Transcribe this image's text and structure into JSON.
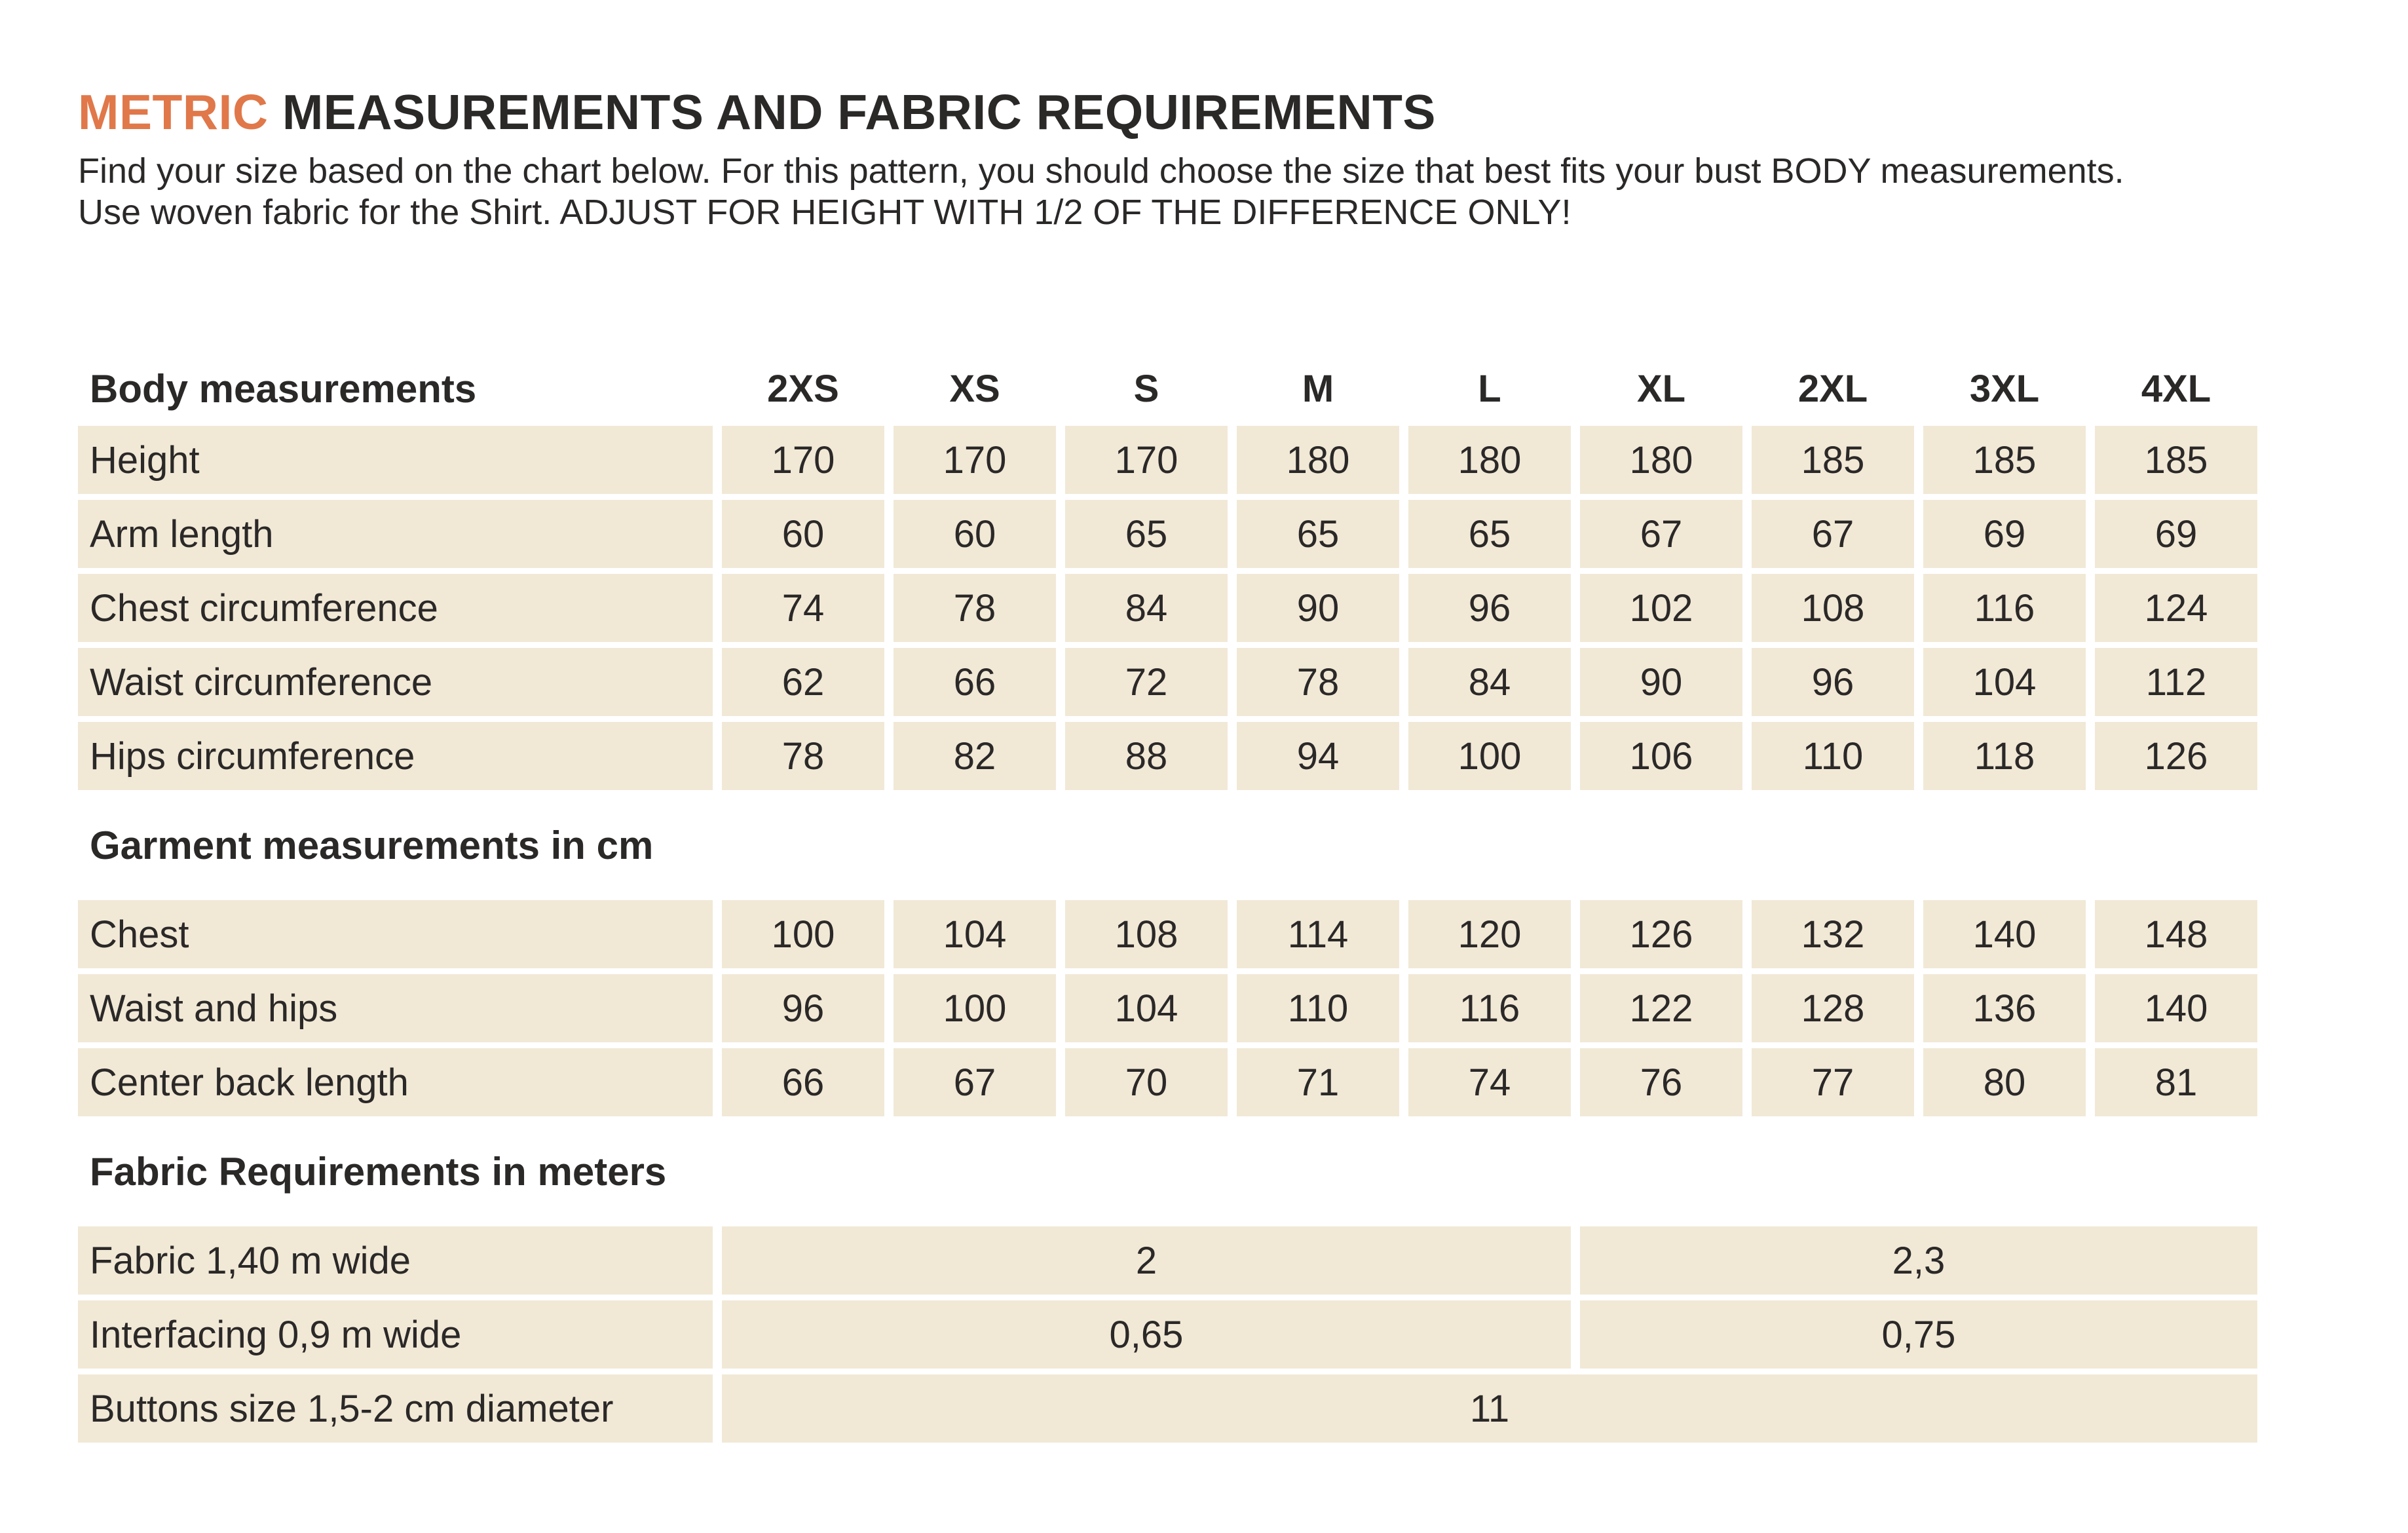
{
  "colors": {
    "accent": "#e0784a",
    "beige": "#f1e9d6",
    "ink": "#2b2828"
  },
  "header": {
    "title_accent": "METRIC ",
    "title_rest": "MEASUREMENTS AND FABRIC REQUIREMENTS",
    "intro_line1": "Find your size based on the chart below. For this pattern, you should choose the size that best fits your bust BODY measurements.",
    "intro_line2": "Use woven fabric for the Shirt. ADJUST FOR HEIGHT WITH 1/2 OF THE DIFFERENCE ONLY!"
  },
  "table": {
    "header_label": "Body measurements",
    "sizes": [
      "2XS",
      "XS",
      "S",
      "M",
      "L",
      "XL",
      "2XL",
      "3XL",
      "4XL"
    ],
    "body_rows": [
      {
        "label": "Height",
        "values": [
          "170",
          "170",
          "170",
          "180",
          "180",
          "180",
          "185",
          "185",
          "185"
        ]
      },
      {
        "label": "Arm length",
        "values": [
          "60",
          "60",
          "65",
          "65",
          "65",
          "67",
          "67",
          "69",
          "69"
        ]
      },
      {
        "label": "Chest circumference",
        "values": [
          "74",
          "78",
          "84",
          "90",
          "96",
          "102",
          "108",
          "116",
          "124"
        ]
      },
      {
        "label": "Waist circumference",
        "values": [
          "62",
          "66",
          "72",
          "78",
          "84",
          "90",
          "96",
          "104",
          "112"
        ]
      },
      {
        "label": "Hips circumference",
        "values": [
          "78",
          "82",
          "88",
          "94",
          "100",
          "106",
          "110",
          "118",
          "126"
        ]
      }
    ],
    "garment_section_label": "Garment measurements in cm",
    "garment_rows": [
      {
        "label": "Chest",
        "values": [
          "100",
          "104",
          "108",
          "114",
          "120",
          "126",
          "132",
          "140",
          "148"
        ]
      },
      {
        "label": "Waist and hips",
        "values": [
          "96",
          "100",
          "104",
          "110",
          "116",
          "122",
          "128",
          "136",
          "140"
        ]
      },
      {
        "label": "Center back length",
        "values": [
          "66",
          "67",
          "70",
          "71",
          "74",
          "76",
          "77",
          "80",
          "81"
        ]
      }
    ],
    "fabric_section_label": "Fabric Requirements in meters",
    "fabric_rows": [
      {
        "label": "Fabric 1,40 m wide",
        "left": "2",
        "right": "2,3"
      },
      {
        "label": "Interfacing 0,9 m wide",
        "left": "0,65",
        "right": "0,75"
      },
      {
        "label": "Buttons size 1,5-2 cm diameter",
        "all": "11"
      }
    ]
  }
}
